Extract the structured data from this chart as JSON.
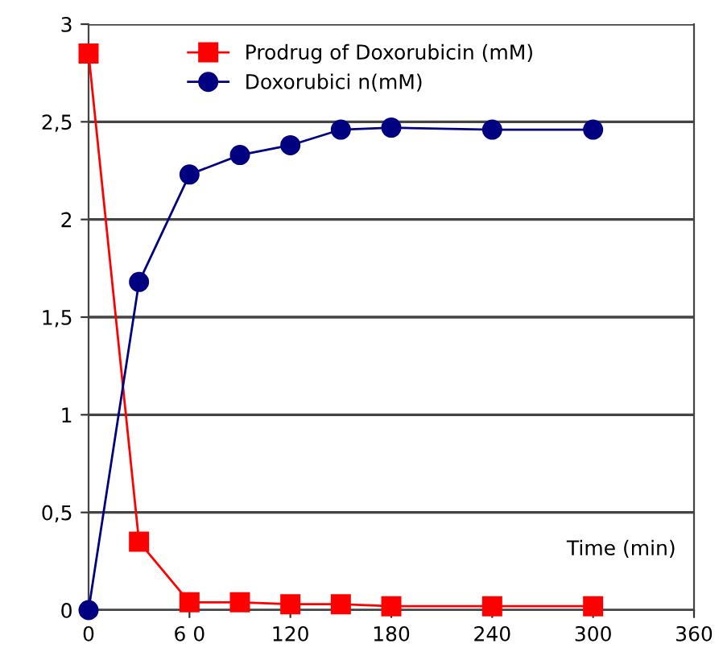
{
  "chart_data": {
    "type": "line",
    "xlabel": "Time (min)",
    "x": [
      0,
      30,
      60,
      90,
      120,
      150,
      180,
      240,
      300
    ],
    "series": [
      {
        "name": "Prodrug of Doxorubicin (mM)",
        "color": "#ff0000",
        "marker": "square",
        "values": [
          2.85,
          0.35,
          0.04,
          0.04,
          0.03,
          0.03,
          0.02,
          0.02,
          0.02
        ]
      },
      {
        "name": "Doxorubici n(mM)",
        "color": "#000080",
        "marker": "circle",
        "values": [
          0,
          1.68,
          2.23,
          2.33,
          2.38,
          2.46,
          2.47,
          2.46,
          2.46
        ]
      }
    ],
    "xlim": [
      0,
      360
    ],
    "xticks": [
      0,
      {
        "value": 60,
        "label": "6 0"
      },
      120,
      180,
      240,
      300,
      360
    ],
    "ylim": [
      0,
      3
    ],
    "yticks": [
      0,
      {
        "value": 0.5,
        "label": "0,5"
      },
      1,
      {
        "value": 1.5,
        "label": "1,5"
      },
      2,
      {
        "value": 2.5,
        "label": "2,5"
      },
      3
    ],
    "grid": "y",
    "legend": "top"
  }
}
